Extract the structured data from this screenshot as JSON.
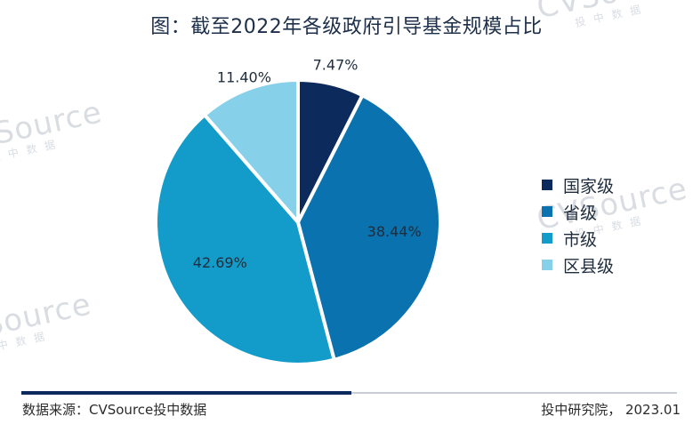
{
  "watermark": {
    "brand": "CVSource",
    "sub": "投中数据"
  },
  "chart_data": {
    "type": "pie",
    "title": "图：截至2022年各级政府引导基金规模占比",
    "categories": [
      "国家级",
      "省级",
      "市级",
      "区县级"
    ],
    "values": [
      7.47,
      38.44,
      42.69,
      11.4
    ],
    "labels": [
      "7.47%",
      "38.44%",
      "42.69%",
      "11.40%"
    ],
    "colors": [
      "#0d2a5c",
      "#0a72ae",
      "#139cca",
      "#86d0ea"
    ],
    "legend_position": "right"
  },
  "footer": {
    "source": "数据来源：CVSource投中数据",
    "credit": "投中研究院，  2023.01"
  }
}
